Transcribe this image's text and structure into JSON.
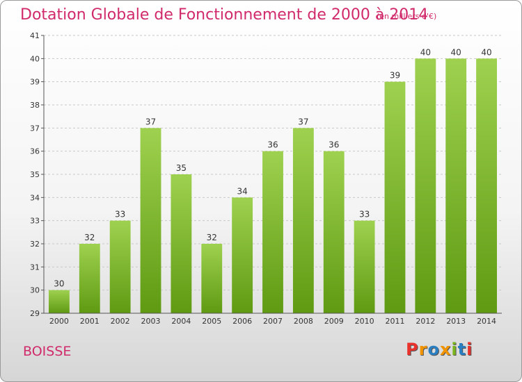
{
  "header": {
    "title": "Dotation Globale de Fonctionnement de 2000 à 2014",
    "unit_note": "(en milliers d'€)"
  },
  "footer": {
    "commune": "BOISSE",
    "logo_text": "Proxiti",
    "logo_letters": [
      {
        "char": "P",
        "color": "#e8322b"
      },
      {
        "char": "r",
        "color": "#f29400"
      },
      {
        "char": "o",
        "color": "#2b7fc1"
      },
      {
        "char": "x",
        "color": "#f29400"
      },
      {
        "char": "i",
        "color": "#7ab51d"
      },
      {
        "char": "t",
        "color": "#2b7fc1"
      },
      {
        "char": "i",
        "color": "#e8322b"
      }
    ]
  },
  "chart_data": {
    "type": "bar",
    "title": "Dotation Globale de Fonctionnement de 2000 à 2014",
    "subtitle": "(en milliers d'€)",
    "categories": [
      "2000",
      "2001",
      "2002",
      "2003",
      "2004",
      "2005",
      "2006",
      "2007",
      "2008",
      "2009",
      "2010",
      "2011",
      "2012",
      "2013",
      "2014"
    ],
    "values": [
      30,
      32,
      33,
      37,
      35,
      32,
      34,
      36,
      37,
      36,
      33,
      39,
      40,
      40,
      40
    ],
    "ylim": [
      29,
      41
    ],
    "yticks": [
      29,
      30,
      31,
      32,
      33,
      34,
      35,
      36,
      37,
      38,
      39,
      40,
      41
    ],
    "grid": true,
    "bar_color_top": "#9ed14f",
    "bar_color_bottom": "#5f9a12",
    "label_color": "#333333"
  }
}
